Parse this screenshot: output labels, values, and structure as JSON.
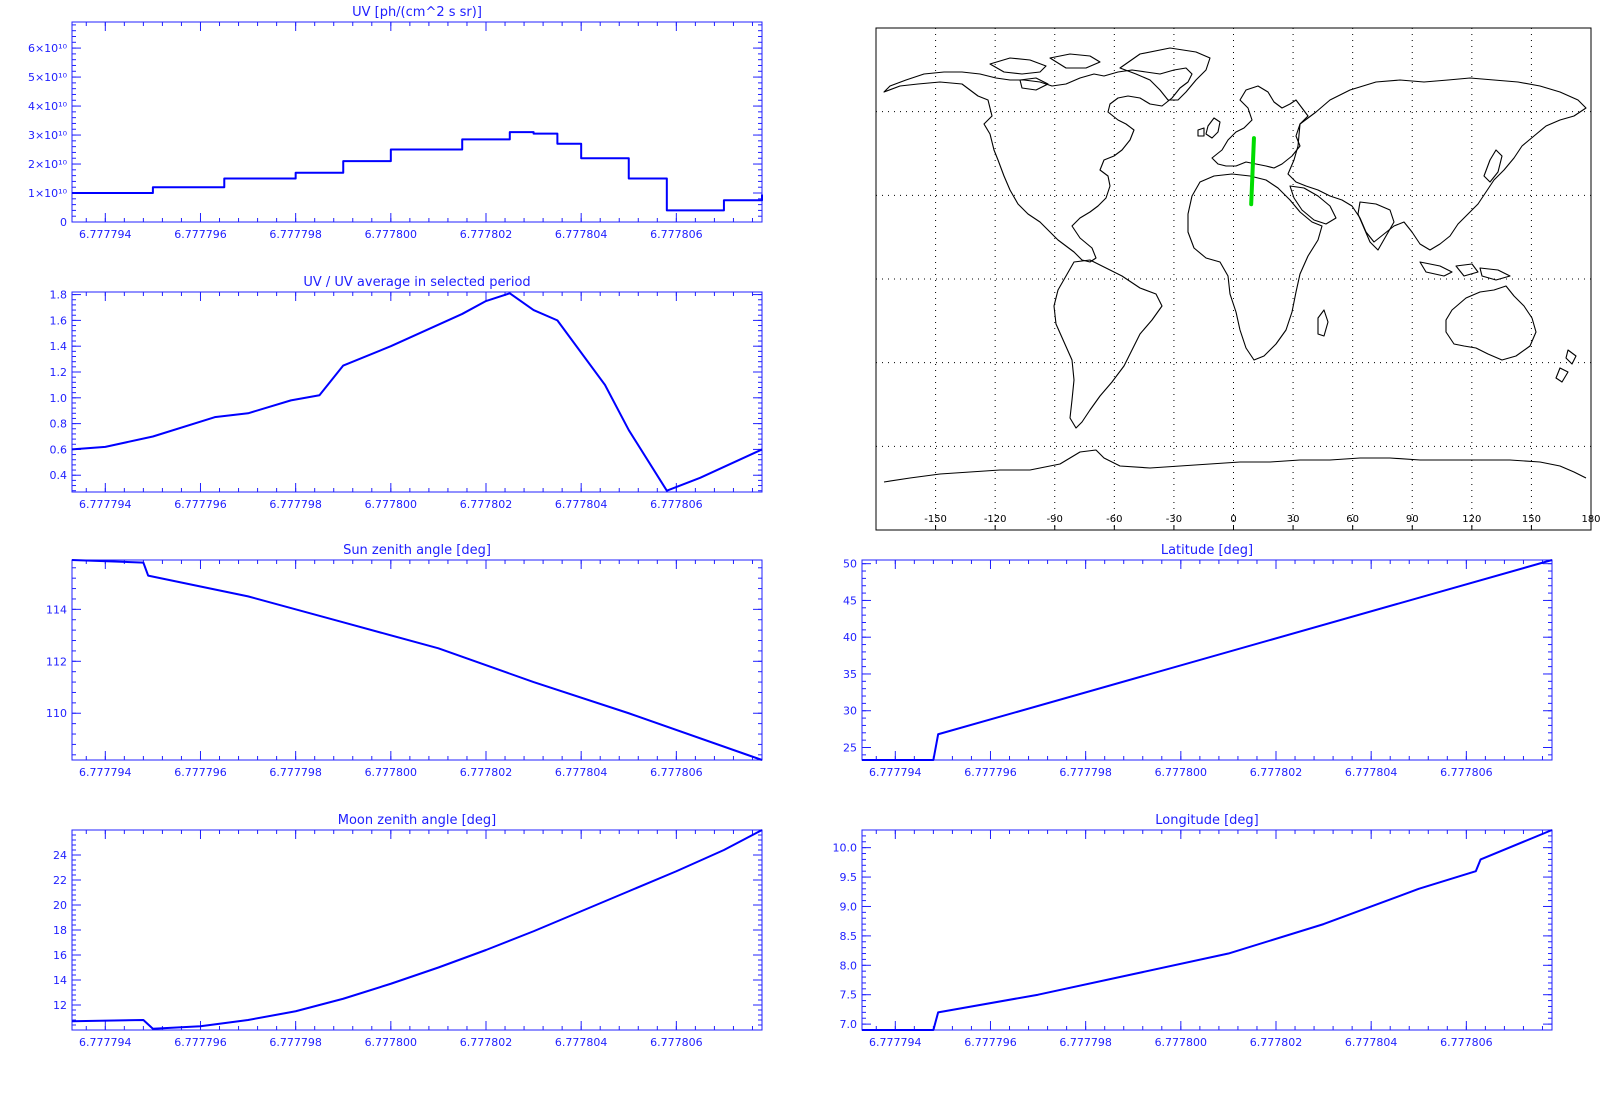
{
  "colors": {
    "axis": "#2020ff",
    "line": "#0000ff",
    "track": "#00dd00",
    "map": "#000000"
  },
  "x_tick_labels": [
    "6.777794",
    "6.777796",
    "6.777798",
    "6.777800",
    "6.777802",
    "6.777804",
    "6.777806"
  ],
  "chart_data": [
    {
      "id": "uv",
      "type": "line",
      "step": true,
      "title": "UV [ph/(cm^2 s sr)]",
      "xlabel": "",
      "ylabel": "",
      "xlim": [
        6.7777933,
        6.7778078
      ],
      "ylim": [
        0,
        69000000000.0
      ],
      "xticks": [
        6.777794,
        6.777796,
        6.777798,
        6.7778,
        6.777802,
        6.777804,
        6.777806
      ],
      "yticks": [
        0,
        10000000000.0,
        20000000000.0,
        30000000000.0,
        40000000000.0,
        50000000000.0,
        60000000000.0
      ],
      "ytick_labels": [
        "0",
        "1×10¹⁰",
        "2×10¹⁰",
        "3×10¹⁰",
        "4×10¹⁰",
        "5×10¹⁰",
        "6×10¹⁰"
      ],
      "x": [
        6.7777933,
        6.777795,
        6.7777965,
        6.777798,
        6.777799,
        6.7778,
        6.7778015,
        6.7778025,
        6.777803,
        6.7778035,
        6.777804,
        6.777805,
        6.7778058,
        6.777807,
        6.7778078
      ],
      "y": [
        10000000000.0,
        12000000000.0,
        15000000000.0,
        17000000000.0,
        21000000000.0,
        25000000000.0,
        28500000000.0,
        31000000000.0,
        30500000000.0,
        27000000000.0,
        22000000000.0,
        15000000000.0,
        4000000000.0,
        7500000000.0,
        9500000000.0
      ]
    },
    {
      "id": "uv-ratio",
      "type": "line",
      "title": "UV / UV average in selected period",
      "xlabel": "",
      "ylabel": "",
      "xlim": [
        6.7777933,
        6.7778078
      ],
      "ylim": [
        0.27,
        1.82
      ],
      "xticks": [
        6.777794,
        6.777796,
        6.777798,
        6.7778,
        6.777802,
        6.777804,
        6.777806
      ],
      "yticks": [
        0.4,
        0.6,
        0.8,
        1.0,
        1.2,
        1.4,
        1.6,
        1.8
      ],
      "ytick_labels": [
        "0.4",
        "0.6",
        "0.8",
        "1.0",
        "1.2",
        "1.4",
        "1.6",
        "1.8"
      ],
      "x": [
        6.7777933,
        6.777794,
        6.777795,
        6.7777963,
        6.777797,
        6.7777979,
        6.7777985,
        6.777799,
        6.7778,
        6.7778015,
        6.777802,
        6.7778025,
        6.777803,
        6.7778035,
        6.7778045,
        6.777805,
        6.7778058,
        6.7778065,
        6.7778078
      ],
      "y": [
        0.6,
        0.62,
        0.7,
        0.85,
        0.88,
        0.98,
        1.02,
        1.25,
        1.4,
        1.65,
        1.75,
        1.81,
        1.68,
        1.6,
        1.1,
        0.75,
        0.28,
        0.38,
        0.6
      ]
    },
    {
      "id": "sun-zenith",
      "type": "line",
      "title": "Sun zenith angle [deg]",
      "xlabel": "",
      "ylabel": "",
      "xlim": [
        6.7777933,
        6.7778078
      ],
      "ylim": [
        108.2,
        115.9
      ],
      "xticks": [
        6.777794,
        6.777796,
        6.777798,
        6.7778,
        6.777802,
        6.777804,
        6.777806
      ],
      "yticks": [
        110,
        112,
        114
      ],
      "ytick_labels": [
        "110",
        "112",
        "114"
      ],
      "x": [
        6.7777933,
        6.7777948,
        6.7777949,
        6.777797,
        6.777799,
        6.777801,
        6.777803,
        6.777805,
        6.7778078
      ],
      "y": [
        115.9,
        115.8,
        115.3,
        114.5,
        113.5,
        112.5,
        111.2,
        110.0,
        108.2
      ]
    },
    {
      "id": "moon-zenith",
      "type": "line",
      "title": "Moon zenith angle [deg]",
      "xlabel": "",
      "ylabel": "",
      "xlim": [
        6.7777933,
        6.7778078
      ],
      "ylim": [
        10.0,
        26.0
      ],
      "xticks": [
        6.777794,
        6.777796,
        6.777798,
        6.7778,
        6.777802,
        6.777804,
        6.777806
      ],
      "yticks": [
        12,
        14,
        16,
        18,
        20,
        22,
        24
      ],
      "ytick_labels": [
        "12",
        "14",
        "16",
        "18",
        "20",
        "22",
        "24"
      ],
      "x": [
        6.7777933,
        6.7777948,
        6.777795,
        6.777796,
        6.777797,
        6.777798,
        6.777799,
        6.7778,
        6.777801,
        6.777802,
        6.777803,
        6.777804,
        6.777805,
        6.777806,
        6.777807,
        6.7778078
      ],
      "y": [
        10.7,
        10.8,
        10.1,
        10.3,
        10.8,
        11.5,
        12.5,
        13.7,
        15.0,
        16.4,
        17.9,
        19.5,
        21.1,
        22.7,
        24.4,
        26.0
      ]
    },
    {
      "id": "latitude",
      "type": "line",
      "title": "Latitude [deg]",
      "xlabel": "",
      "ylabel": "",
      "xlim": [
        6.7777933,
        6.7778078
      ],
      "ylim": [
        23.3,
        50.5
      ],
      "xticks": [
        6.777794,
        6.777796,
        6.777798,
        6.7778,
        6.777802,
        6.777804,
        6.777806
      ],
      "yticks": [
        25,
        30,
        35,
        40,
        45,
        50
      ],
      "ytick_labels": [
        "25",
        "30",
        "35",
        "40",
        "45",
        "50"
      ],
      "x": [
        6.7777933,
        6.7777948,
        6.7777949,
        6.7778078
      ],
      "y": [
        23.3,
        23.3,
        26.8,
        50.5
      ]
    },
    {
      "id": "longitude",
      "type": "line",
      "title": "Longitude [deg]",
      "xlabel": "",
      "ylabel": "",
      "xlim": [
        6.7777933,
        6.7778078
      ],
      "ylim": [
        6.9,
        10.3
      ],
      "xticks": [
        6.777794,
        6.777796,
        6.777798,
        6.7778,
        6.777802,
        6.777804,
        6.777806
      ],
      "yticks": [
        7.0,
        7.5,
        8.0,
        8.5,
        9.0,
        9.5,
        10.0
      ],
      "ytick_labels": [
        "7.0",
        "7.5",
        "8.0",
        "8.5",
        "9.0",
        "9.5",
        "10.0"
      ],
      "x": [
        6.7777933,
        6.7777948,
        6.7777949,
        6.777797,
        6.777799,
        6.777801,
        6.777803,
        6.777805,
        6.7778062,
        6.7778063,
        6.7778078
      ],
      "y": [
        6.9,
        6.9,
        7.2,
        7.5,
        7.85,
        8.2,
        8.7,
        9.3,
        9.6,
        9.8,
        10.3
      ]
    }
  ],
  "map": {
    "xticks": [
      -150,
      -120,
      -90,
      -60,
      -30,
      0,
      30,
      60,
      90,
      120,
      150,
      180
    ],
    "xtick_labels": [
      "-150",
      "-120",
      "-90",
      "-60",
      "-30",
      "0",
      "30",
      "60",
      "90",
      "120",
      "150",
      "180"
    ],
    "lon_range": [
      -180,
      180
    ],
    "lat_range": [
      -90,
      90
    ],
    "grid_lats": [
      -60,
      -30,
      0,
      30,
      60
    ],
    "track": {
      "lon": [
        8.9,
        10.3
      ],
      "lat": [
        26.8,
        50.5
      ]
    }
  }
}
